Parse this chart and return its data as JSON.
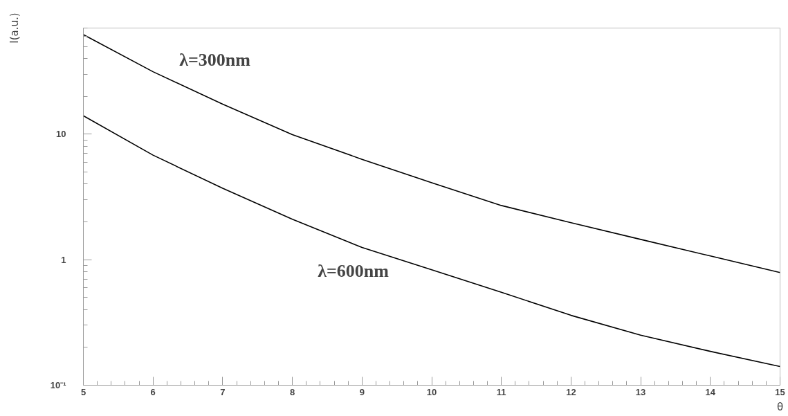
{
  "chart_data": {
    "type": "line",
    "xlabel": "θ",
    "ylabel": "I(a.u.)",
    "log": "y",
    "x": [
      5,
      6,
      7,
      8,
      9,
      10,
      11,
      12,
      13,
      14,
      15
    ],
    "series": [
      {
        "color": "#000000",
        "values": [
          62,
          31.4,
          17.3,
          9.9,
          6.3,
          4.1,
          2.7,
          1.97,
          1.45,
          1.07,
          0.79
        ]
      },
      {
        "color": "#000000",
        "values": [
          14.0,
          6.8,
          3.7,
          2.1,
          1.25,
          0.83,
          0.55,
          0.36,
          0.25,
          0.186,
          0.141
        ]
      }
    ],
    "xlim": [
      5,
      15
    ],
    "ylim": [
      0.1,
      70
    ],
    "xticks": [
      5,
      6,
      7,
      8,
      9,
      10,
      11,
      12,
      13,
      14,
      15
    ],
    "yticks": [
      {
        "value": 0.1,
        "label": "10⁻¹"
      },
      1,
      10
    ],
    "grid": false,
    "marker": "none",
    "line_style": "solid",
    "annotations": [
      "λ=300nm",
      "λ=600nm"
    ]
  }
}
